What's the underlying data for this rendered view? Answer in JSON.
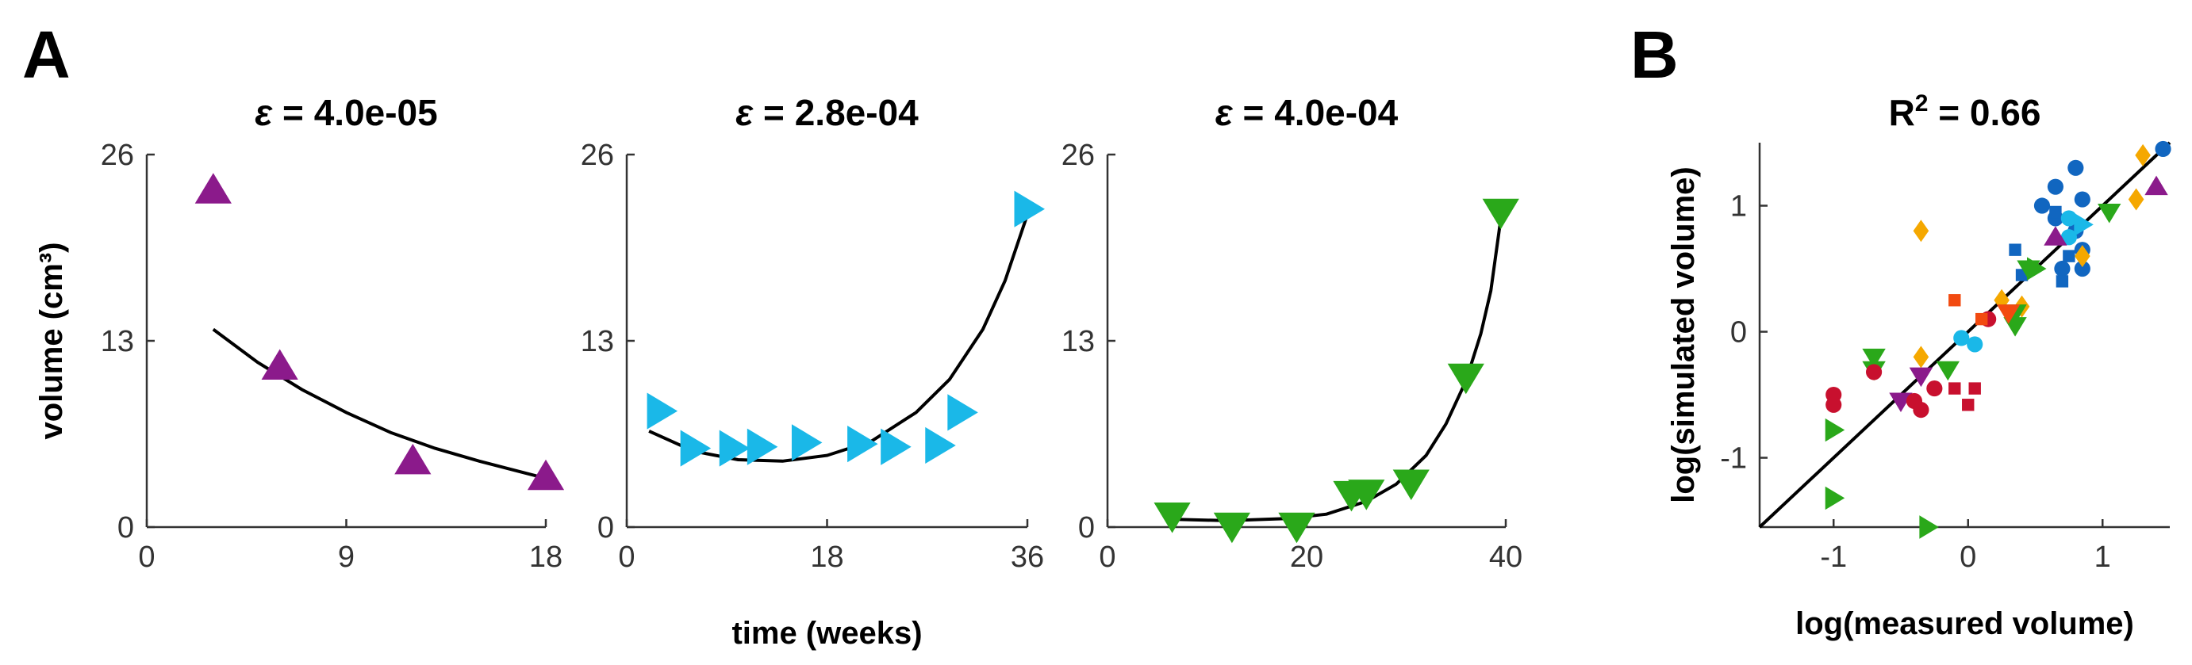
{
  "panel_labels": [
    "A",
    "B"
  ],
  "colors": {
    "purple": "#8b1a8b",
    "cyan": "#1ab8e8",
    "green": "#2aa81a",
    "blue": "#1166c0",
    "orange": "#f5a800",
    "red": "#c8102e",
    "orangered": "#f24a10"
  },
  "chart_data": [
    {
      "type": "scatter",
      "title_prefix": "ε",
      "title_value": " = 4.0e-05",
      "xlabel": "",
      "ylabel": "volume (cm³)",
      "xlim": [
        0,
        18
      ],
      "ylim": [
        0,
        26
      ],
      "xticks": [
        "0",
        "9",
        "18"
      ],
      "yticks": [
        "0",
        "13",
        "26"
      ],
      "marker": "triangle-up",
      "color": "#8b1a8b",
      "points": [
        [
          3,
          23.5
        ],
        [
          6,
          11.2
        ],
        [
          12,
          4.6
        ],
        [
          18,
          3.5
        ]
      ],
      "fit": [
        [
          3,
          13.8
        ],
        [
          5,
          11.5
        ],
        [
          7,
          9.6
        ],
        [
          9,
          8.0
        ],
        [
          11,
          6.6
        ],
        [
          13,
          5.5
        ],
        [
          15,
          4.6
        ],
        [
          17,
          3.8
        ],
        [
          18,
          3.4
        ]
      ]
    },
    {
      "type": "scatter",
      "title_prefix": "ε",
      "title_value": " = 2.8e-04",
      "xlabel": "time (weeks)",
      "ylabel": "",
      "xlim": [
        0,
        36
      ],
      "ylim": [
        0,
        26
      ],
      "xticks": [
        "0",
        "18",
        "36"
      ],
      "yticks": [
        "0",
        "13",
        "26"
      ],
      "marker": "triangle-right",
      "color": "#1ab8e8",
      "points": [
        [
          3,
          8.1
        ],
        [
          6,
          5.5
        ],
        [
          9.5,
          5.5
        ],
        [
          12,
          5.6
        ],
        [
          16,
          5.9
        ],
        [
          21,
          5.8
        ],
        [
          24,
          5.6
        ],
        [
          28,
          5.7
        ],
        [
          30,
          8.0
        ],
        [
          36,
          22.2
        ]
      ],
      "fit": [
        [
          2,
          6.7
        ],
        [
          6,
          5.3
        ],
        [
          10,
          4.7
        ],
        [
          14,
          4.6
        ],
        [
          18,
          5.0
        ],
        [
          22,
          6.0
        ],
        [
          26,
          8.0
        ],
        [
          29,
          10.3
        ],
        [
          32,
          13.8
        ],
        [
          34,
          17.2
        ],
        [
          36,
          21.8
        ]
      ]
    },
    {
      "type": "scatter",
      "title_prefix": "ε",
      "title_value": " = 4.0e-04",
      "xlabel": "",
      "ylabel": "",
      "xlim": [
        0,
        40
      ],
      "ylim": [
        0,
        26
      ],
      "xticks": [
        "0",
        "20",
        "40"
      ],
      "yticks": [
        "0",
        "13",
        "26"
      ],
      "marker": "triangle-down",
      "color": "#2aa81a",
      "points": [
        [
          6.5,
          0.8
        ],
        [
          12.5,
          0.1
        ],
        [
          19,
          0.1
        ],
        [
          24.5,
          2.3
        ],
        [
          26,
          2.4
        ],
        [
          30.5,
          3.1
        ],
        [
          36,
          10.5
        ],
        [
          39.5,
          22.0
        ]
      ],
      "fit": [
        [
          6.5,
          0.55
        ],
        [
          12,
          0.45
        ],
        [
          18,
          0.6
        ],
        [
          22,
          0.9
        ],
        [
          26,
          1.8
        ],
        [
          29,
          3.0
        ],
        [
          32,
          5.0
        ],
        [
          34,
          7.2
        ],
        [
          36,
          10.2
        ],
        [
          37.5,
          13.5
        ],
        [
          38.5,
          16.5
        ],
        [
          39.5,
          21.5
        ]
      ]
    },
    {
      "type": "scatter",
      "title": "R² = 0.66",
      "title_prefix": "R",
      "title_sup": "2",
      "title_value": " = 0.66",
      "xlabel": "log(measured volume)",
      "ylabel": "log(simulated volume)",
      "xlim": [
        -1.55,
        1.5
      ],
      "ylim": [
        -1.55,
        1.5
      ],
      "xticks": [
        "-1",
        "0",
        "1"
      ],
      "yticks": [
        "-1",
        "0",
        "1"
      ],
      "identity_line": true,
      "points": [
        {
          "x": 1.45,
          "y": 1.45,
          "marker": "circle",
          "color": "#1166c0"
        },
        {
          "x": 0.65,
          "y": 1.15,
          "marker": "circle",
          "color": "#1166c0"
        },
        {
          "x": 0.8,
          "y": 1.3,
          "marker": "circle",
          "color": "#1166c0"
        },
        {
          "x": 0.55,
          "y": 1.0,
          "marker": "circle",
          "color": "#1166c0"
        },
        {
          "x": 0.85,
          "y": 1.05,
          "marker": "circle",
          "color": "#1166c0"
        },
        {
          "x": 0.65,
          "y": 0.9,
          "marker": "circle",
          "color": "#1166c0"
        },
        {
          "x": 0.8,
          "y": 0.8,
          "marker": "circle",
          "color": "#1166c0"
        },
        {
          "x": 0.85,
          "y": 0.65,
          "marker": "circle",
          "color": "#1166c0"
        },
        {
          "x": 0.7,
          "y": 0.5,
          "marker": "circle",
          "color": "#1166c0"
        },
        {
          "x": 0.85,
          "y": 0.5,
          "marker": "circle",
          "color": "#1166c0"
        },
        {
          "x": 0.35,
          "y": 0.65,
          "marker": "square",
          "color": "#1166c0"
        },
        {
          "x": 0.4,
          "y": 0.45,
          "marker": "square",
          "color": "#1166c0"
        },
        {
          "x": 0.7,
          "y": 0.4,
          "marker": "square",
          "color": "#1166c0"
        },
        {
          "x": 0.75,
          "y": 0.6,
          "marker": "square",
          "color": "#1166c0"
        },
        {
          "x": 0.65,
          "y": 0.95,
          "marker": "square",
          "color": "#1166c0"
        },
        {
          "x": 0.75,
          "y": 0.9,
          "marker": "circle",
          "color": "#1ab8e8"
        },
        {
          "x": 0.75,
          "y": 0.75,
          "marker": "circle",
          "color": "#1ab8e8"
        },
        {
          "x": 0.85,
          "y": 0.85,
          "marker": "triangle-right",
          "color": "#1ab8e8"
        },
        {
          "x": -0.05,
          "y": -0.05,
          "marker": "circle",
          "color": "#1ab8e8"
        },
        {
          "x": 0.05,
          "y": -0.1,
          "marker": "circle",
          "color": "#1ab8e8"
        },
        {
          "x": 1.3,
          "y": 1.4,
          "marker": "diamond",
          "color": "#f5a800"
        },
        {
          "x": 1.25,
          "y": 1.05,
          "marker": "diamond",
          "color": "#f5a800"
        },
        {
          "x": -0.35,
          "y": 0.8,
          "marker": "diamond",
          "color": "#f5a800"
        },
        {
          "x": 0.85,
          "y": 0.6,
          "marker": "diamond",
          "color": "#f5a800"
        },
        {
          "x": 0.25,
          "y": 0.25,
          "marker": "diamond",
          "color": "#f5a800"
        },
        {
          "x": 0.4,
          "y": 0.2,
          "marker": "diamond",
          "color": "#f5a800"
        },
        {
          "x": -0.35,
          "y": -0.2,
          "marker": "diamond",
          "color": "#f5a800"
        },
        {
          "x": 1.4,
          "y": 1.15,
          "marker": "triangle-up",
          "color": "#8b1a8b"
        },
        {
          "x": 0.65,
          "y": 0.75,
          "marker": "triangle-up",
          "color": "#8b1a8b"
        },
        {
          "x": -0.35,
          "y": -0.35,
          "marker": "triangle-down",
          "color": "#8b1a8b"
        },
        {
          "x": -0.5,
          "y": -0.55,
          "marker": "triangle-down",
          "color": "#8b1a8b"
        },
        {
          "x": 1.05,
          "y": 0.95,
          "marker": "triangle-down",
          "color": "#2aa81a"
        },
        {
          "x": 0.45,
          "y": 0.5,
          "marker": "triangle-down",
          "color": "#2aa81a"
        },
        {
          "x": 0.35,
          "y": 0.15,
          "marker": "triangle-down",
          "color": "#2aa81a"
        },
        {
          "x": 0.35,
          "y": 0.05,
          "marker": "triangle-down",
          "color": "#2aa81a"
        },
        {
          "x": -0.7,
          "y": -0.2,
          "marker": "triangle-down",
          "color": "#2aa81a"
        },
        {
          "x": -0.7,
          "y": -0.3,
          "marker": "triangle-down",
          "color": "#2aa81a"
        },
        {
          "x": -0.15,
          "y": -0.3,
          "marker": "triangle-down",
          "color": "#2aa81a"
        },
        {
          "x": 0.5,
          "y": 0.5,
          "marker": "triangle-right",
          "color": "#2aa81a"
        },
        {
          "x": -1.0,
          "y": -0.78,
          "marker": "triangle-right",
          "color": "#2aa81a"
        },
        {
          "x": -1.0,
          "y": -1.32,
          "marker": "triangle-right",
          "color": "#2aa81a"
        },
        {
          "x": -0.3,
          "y": -1.55,
          "marker": "triangle-right",
          "color": "#2aa81a"
        },
        {
          "x": -1.0,
          "y": -0.5,
          "marker": "circle",
          "color": "#c8102e"
        },
        {
          "x": -1.0,
          "y": -0.58,
          "marker": "circle",
          "color": "#c8102e"
        },
        {
          "x": -0.7,
          "y": -0.32,
          "marker": "circle",
          "color": "#c8102e"
        },
        {
          "x": -0.4,
          "y": -0.55,
          "marker": "circle",
          "color": "#c8102e"
        },
        {
          "x": -0.35,
          "y": -0.62,
          "marker": "circle",
          "color": "#c8102e"
        },
        {
          "x": -0.25,
          "y": -0.45,
          "marker": "circle",
          "color": "#c8102e"
        },
        {
          "x": 0.15,
          "y": 0.1,
          "marker": "circle",
          "color": "#c8102e"
        },
        {
          "x": -0.1,
          "y": -0.45,
          "marker": "square",
          "color": "#c8102e"
        },
        {
          "x": 0.05,
          "y": -0.45,
          "marker": "square",
          "color": "#c8102e"
        },
        {
          "x": 0.0,
          "y": -0.58,
          "marker": "square",
          "color": "#c8102e"
        },
        {
          "x": -0.1,
          "y": 0.25,
          "marker": "square",
          "color": "#f24a10"
        },
        {
          "x": 0.1,
          "y": 0.1,
          "marker": "square",
          "color": "#f24a10"
        },
        {
          "x": 0.3,
          "y": 0.15,
          "marker": "triangle-down",
          "color": "#f24a10"
        }
      ]
    }
  ]
}
